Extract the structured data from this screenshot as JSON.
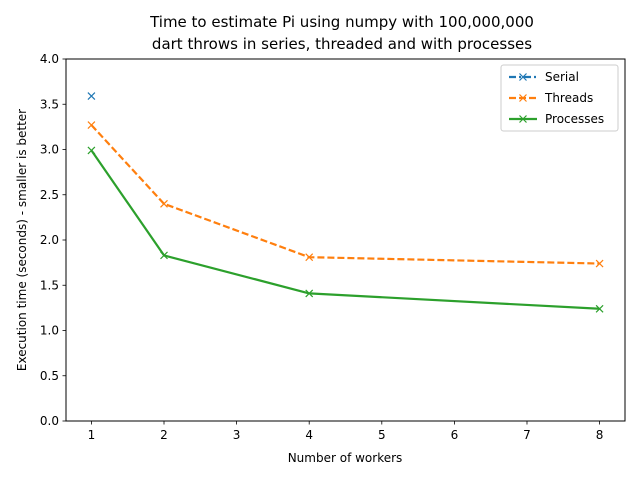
{
  "chart_data": {
    "type": "line",
    "title_lines": [
      "Time to estimate Pi using numpy with 100,000,000",
      "dart throws in series, threaded and with processes"
    ],
    "xlabel": "Number of workers",
    "ylabel": "Execution time (seconds) - smaller is better",
    "xlim": [
      0.65,
      8.35
    ],
    "ylim": [
      0.0,
      4.0
    ],
    "xticks": [
      1,
      2,
      3,
      4,
      5,
      6,
      7,
      8
    ],
    "yticks": [
      0.0,
      0.5,
      1.0,
      1.5,
      2.0,
      2.5,
      3.0,
      3.5,
      4.0
    ],
    "ytick_labels": [
      "0.0",
      "0.5",
      "1.0",
      "1.5",
      "2.0",
      "2.5",
      "3.0",
      "3.5",
      "4.0"
    ],
    "grid": false,
    "legend_position": "top-right",
    "series": [
      {
        "name": "Serial",
        "x": [
          1
        ],
        "y": [
          3.59
        ],
        "color": "#1f77b4",
        "line_style": "dashdot",
        "marker": "x"
      },
      {
        "name": "Threads",
        "x": [
          1,
          2,
          4,
          8
        ],
        "y": [
          3.27,
          2.4,
          1.81,
          1.74
        ],
        "color": "#ff7f0e",
        "line_style": "dashed",
        "marker": "x"
      },
      {
        "name": "Processes",
        "x": [
          1,
          2,
          4,
          8
        ],
        "y": [
          2.99,
          1.83,
          1.41,
          1.24
        ],
        "color": "#2ca02c",
        "line_style": "solid",
        "marker": "x"
      }
    ]
  }
}
